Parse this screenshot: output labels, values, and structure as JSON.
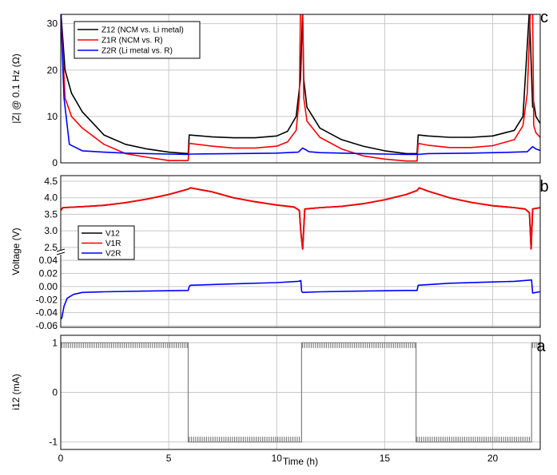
{
  "chart_data": [
    {
      "panel": "c",
      "type": "line",
      "ylabel": "|Z| @ 0.1 Hz (Ω)",
      "xlim": [
        0,
        22.2
      ],
      "ylim": [
        0,
        32
      ],
      "yticks": [
        0,
        10,
        20,
        30
      ],
      "grid": true,
      "legend": "top-left",
      "series": [
        {
          "name": "Z12 (NCM vs. Li metal)",
          "color": "#000000",
          "x": [
            0,
            0.2,
            0.5,
            1,
            2,
            3,
            4,
            5,
            5.9,
            5.95,
            7,
            8,
            9,
            10,
            10.5,
            10.9,
            11.1,
            11.2,
            11.25,
            11.4,
            12,
            13,
            14,
            15,
            16,
            16.5,
            16.55,
            17,
            18,
            19,
            20,
            21,
            21.4,
            21.7,
            21.85,
            21.9,
            22,
            22.2
          ],
          "y": [
            33,
            20,
            15,
            11,
            6,
            4,
            3,
            2.3,
            2,
            6,
            5.6,
            5.4,
            5.4,
            5.8,
            6.8,
            10,
            18,
            33,
            18,
            12,
            7.5,
            5,
            3.6,
            2.6,
            2,
            2,
            6,
            5.8,
            5.5,
            5.5,
            5.8,
            7,
            10,
            33,
            12,
            13,
            10,
            8.5
          ]
        },
        {
          "name": "Z1R (NCM vs. R)",
          "color": "#ff0000",
          "x": [
            0,
            0.2,
            0.5,
            1,
            2,
            3,
            4,
            5,
            5.9,
            5.95,
            7,
            8,
            9,
            10,
            10.5,
            10.9,
            11.05,
            11.1,
            11.2,
            11.25,
            11.4,
            12,
            13,
            14,
            15,
            16,
            16.5,
            16.55,
            17,
            18,
            19,
            20,
            21,
            21.4,
            21.6,
            21.75,
            21.85,
            21.9,
            22,
            22.2
          ],
          "y": [
            33,
            14,
            10,
            7.5,
            4,
            2,
            1.2,
            0.5,
            0.5,
            4.2,
            3.6,
            3.2,
            3.2,
            3.6,
            4.5,
            7,
            14,
            33,
            33,
            14,
            9,
            5.5,
            3,
            1.5,
            0.8,
            0.4,
            0.4,
            4.2,
            3.8,
            3.3,
            3.3,
            3.7,
            5,
            8,
            15,
            33,
            33,
            8,
            6.5,
            5.5
          ]
        },
        {
          "name": "Z2R (Li metal vs. R)",
          "color": "#0000ff",
          "x": [
            0,
            0.15,
            0.4,
            1,
            2,
            3,
            4,
            5,
            5.9,
            6,
            8,
            10,
            11,
            11.2,
            11.5,
            12,
            14,
            16,
            16.5,
            17,
            19,
            21,
            21.6,
            21.85,
            22,
            22.2
          ],
          "y": [
            33,
            14,
            4,
            2.6,
            2.3,
            2.1,
            2,
            1.9,
            1.8,
            1.9,
            2,
            2.1,
            2.3,
            3.2,
            2.4,
            2.2,
            2,
            1.8,
            1.8,
            2,
            2.1,
            2.3,
            2.4,
            3.5,
            3,
            2.7
          ]
        }
      ]
    },
    {
      "panel": "b",
      "type": "line",
      "ylabel": "Voltage (V)",
      "xlim": [
        0,
        22.2
      ],
      "ylim_upper": [
        2.4,
        4.5
      ],
      "yticks_upper": [
        2.5,
        3.0,
        3.5,
        4.0,
        4.5
      ],
      "ytick_labels_upper": [
        "2.5",
        "3.0",
        "3.5",
        "4.0",
        "4.5"
      ],
      "ylim_lower": [
        -0.06,
        0.05
      ],
      "yticks_lower": [
        -0.06,
        -0.04,
        -0.02,
        0,
        0.02,
        0.04
      ],
      "ytick_labels_lower": [
        "-0.06",
        "-0.04",
        "-0.02",
        "0.00",
        "0.02",
        "0.04"
      ],
      "axis_break": true,
      "grid": true,
      "legend": "left",
      "series": [
        {
          "name": "V12",
          "color": "#000000",
          "axis": "upper",
          "x": [
            0,
            0.1,
            1,
            2,
            3,
            4,
            5,
            5.9,
            6,
            7,
            8,
            9,
            10,
            10.8,
            11.05,
            11.12,
            11.2,
            11.3,
            12,
            13,
            14,
            15,
            16,
            16.5,
            16.6,
            17,
            18,
            19,
            20,
            21,
            21.5,
            21.7,
            21.78,
            21.85,
            22,
            22.2
          ],
          "y": [
            3.62,
            3.7,
            3.73,
            3.77,
            3.85,
            3.96,
            4.1,
            4.26,
            4.3,
            4.18,
            4.0,
            3.88,
            3.78,
            3.72,
            3.62,
            2.95,
            2.45,
            3.66,
            3.7,
            3.74,
            3.82,
            3.94,
            4.1,
            4.22,
            4.3,
            4.2,
            4.0,
            3.86,
            3.76,
            3.7,
            3.66,
            3.55,
            2.45,
            3.66,
            3.68,
            3.7
          ]
        },
        {
          "name": "V1R",
          "color": "#ff0000",
          "axis": "upper",
          "x": [
            0,
            0.1,
            1,
            2,
            3,
            4,
            5,
            5.9,
            6,
            7,
            8,
            9,
            10,
            10.8,
            11.05,
            11.12,
            11.2,
            11.3,
            12,
            13,
            14,
            15,
            16,
            16.5,
            16.6,
            17,
            18,
            19,
            20,
            21,
            21.5,
            21.7,
            21.78,
            21.85,
            22,
            22.2
          ],
          "y": [
            3.62,
            3.7,
            3.73,
            3.77,
            3.85,
            3.96,
            4.1,
            4.26,
            4.3,
            4.18,
            4.0,
            3.88,
            3.78,
            3.72,
            3.62,
            2.95,
            2.45,
            3.66,
            3.7,
            3.74,
            3.82,
            3.94,
            4.1,
            4.22,
            4.3,
            4.2,
            4.0,
            3.86,
            3.76,
            3.7,
            3.66,
            3.55,
            2.45,
            3.66,
            3.68,
            3.7
          ]
        },
        {
          "name": "V2R",
          "color": "#0000ff",
          "axis": "lower",
          "x": [
            0,
            0.05,
            0.15,
            0.3,
            0.6,
            1,
            2,
            4,
            5.9,
            5.95,
            6,
            8,
            10,
            11,
            11.12,
            11.15,
            11.2,
            12,
            14,
            16,
            16.5,
            16.55,
            18,
            20,
            21,
            21.8,
            21.85,
            22,
            22.2
          ],
          "y": [
            -0.05,
            -0.048,
            -0.03,
            -0.018,
            -0.012,
            -0.009,
            -0.008,
            -0.007,
            -0.006,
            0.0,
            0.002,
            0.004,
            0.006,
            0.008,
            0.009,
            -0.007,
            -0.009,
            -0.008,
            -0.007,
            -0.006,
            -0.006,
            0.002,
            0.005,
            0.007,
            0.008,
            0.01,
            -0.01,
            -0.009,
            -0.008
          ]
        }
      ]
    },
    {
      "panel": "a",
      "type": "line",
      "ylabel": "i12 (mA)",
      "xlabel": "Time (h)",
      "xlim": [
        0,
        22.2
      ],
      "xticks": [
        0,
        5,
        10,
        15,
        20
      ],
      "ylim": [
        -1.15,
        1.15
      ],
      "yticks": [
        -1,
        0,
        1
      ],
      "grid": true,
      "series": [
        {
          "name": "i12",
          "color": "#808080",
          "segments": [
            {
              "x0": 0,
              "x1": 5.9,
              "level": 1
            },
            {
              "x0": 5.9,
              "x1": 11.15,
              "level": -1
            },
            {
              "x0": 11.15,
              "x1": 16.45,
              "level": 1
            },
            {
              "x0": 16.45,
              "x1": 21.8,
              "level": -1
            },
            {
              "x0": 21.8,
              "x1": 22.2,
              "level": 1
            }
          ],
          "pulse_period": 0.1,
          "pulse_amplitude": 0.1
        }
      ]
    }
  ]
}
